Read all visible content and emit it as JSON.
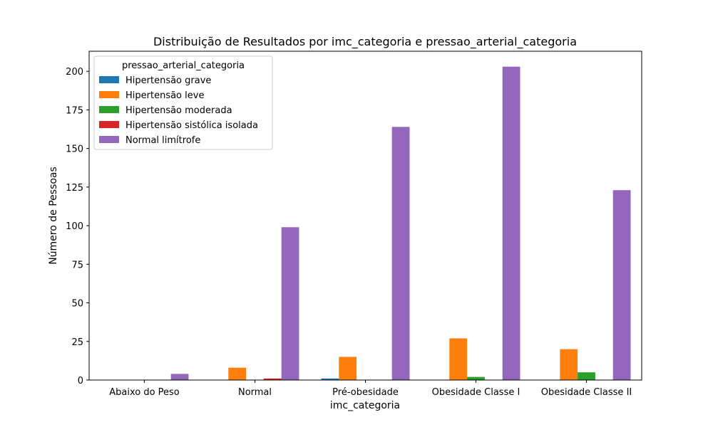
{
  "chart_data": {
    "type": "bar",
    "title": "Distribuição de Resultados por imc_categoria e pressao_arterial_categoria",
    "xlabel": "imc_categoria",
    "ylabel": "Número de Pessoas",
    "categories": [
      "Abaixo do Peso",
      "Normal",
      "Pré-obesidade",
      "Obesidade Classe I",
      "Obesidade Classe II"
    ],
    "ylim": [
      0,
      213
    ],
    "yticks": [
      0,
      25,
      50,
      75,
      100,
      125,
      150,
      175,
      200
    ],
    "legend": {
      "title": "pressao_arterial_categoria",
      "position": "top-left"
    },
    "series": [
      {
        "name": "Hipertensão grave",
        "color": "#1f77b4",
        "values": [
          0,
          0,
          1,
          0,
          0
        ]
      },
      {
        "name": "Hipertensão leve",
        "color": "#ff7f0e",
        "values": [
          0,
          8,
          15,
          27,
          20
        ]
      },
      {
        "name": "Hipertensão moderada",
        "color": "#2ca02c",
        "values": [
          0,
          0,
          0,
          2,
          5
        ]
      },
      {
        "name": "Hipertensão sistólica isolada",
        "color": "#d62728",
        "values": [
          0,
          1,
          0,
          0,
          0
        ]
      },
      {
        "name": "Normal limítrofe",
        "color": "#9467bd",
        "values": [
          4,
          99,
          164,
          203,
          123
        ]
      }
    ]
  }
}
